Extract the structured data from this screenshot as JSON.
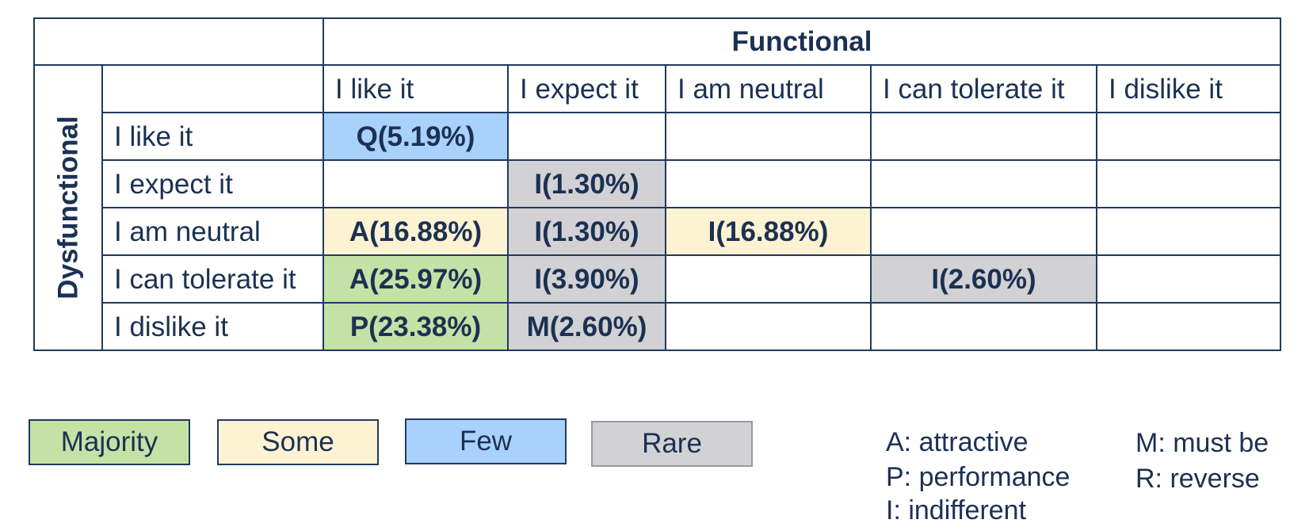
{
  "header": {
    "functional": "Functional",
    "dysfunctional": "Dysfunctional"
  },
  "columns": [
    "I like it",
    "I expect it",
    "I am neutral",
    "I can tolerate it",
    "I dislike it"
  ],
  "rows": [
    {
      "label": "I like it",
      "cells": [
        "Q(5.19%)",
        "",
        "",
        "",
        ""
      ]
    },
    {
      "label": "I expect it",
      "cells": [
        "",
        "I(1.30%)",
        "",
        "",
        ""
      ]
    },
    {
      "label": "I am neutral",
      "cells": [
        "A(16.88%)",
        "I(1.30%)",
        "I(16.88%)",
        "",
        ""
      ]
    },
    {
      "label": "I can tolerate it",
      "cells": [
        "A(25.97%)",
        "I(3.90%)",
        "",
        "I(2.60%)",
        ""
      ]
    },
    {
      "label": "I dislike it",
      "cells": [
        "P(23.38%)",
        "M(2.60%)",
        "",
        "",
        ""
      ]
    }
  ],
  "legend": {
    "majority": {
      "label": "Majority",
      "color": "#c4e2a5"
    },
    "some": {
      "label": "Some",
      "color": "#fdf3d2"
    },
    "few": {
      "label": "Few",
      "color": "#a8d1fb"
    },
    "rare": {
      "label": "Rare",
      "color": "#d2d1d4"
    }
  },
  "key": {
    "a": "A: attractive",
    "p": "P: performance",
    "i": "I: indifferent",
    "m": "M: must be",
    "r": "R: reverse"
  },
  "colors": {
    "text": "#1b3153",
    "border": "#1f3a5f"
  }
}
